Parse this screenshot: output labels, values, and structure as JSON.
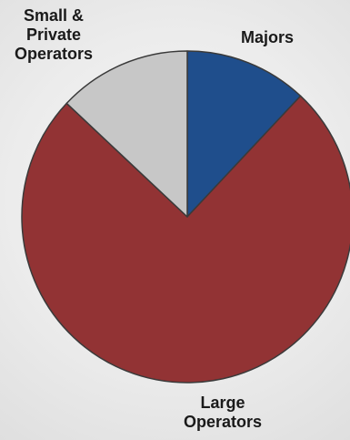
{
  "chart_data": {
    "type": "pie",
    "slices": [
      {
        "label": "Majors",
        "value": 12,
        "color": "#1f4e8c"
      },
      {
        "label": "Large\nOperators",
        "value": 75,
        "color": "#923334"
      },
      {
        "label": "Small &\nPrivate\nOperators",
        "value": 13,
        "color": "#c7c7c7"
      }
    ],
    "start_angle_deg": 0,
    "direction": "clockwise"
  }
}
